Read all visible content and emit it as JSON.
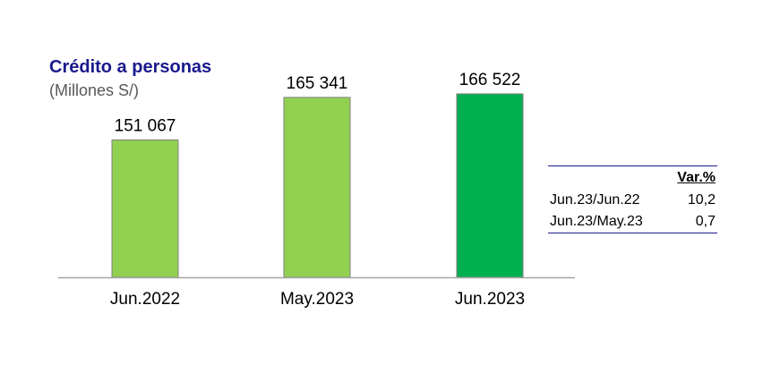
{
  "title": "Crédito a personas",
  "subtitle": "(Millones S/)",
  "chart_data": {
    "type": "bar",
    "categories": [
      "Jun.2022",
      "May.2023",
      "Jun.2023"
    ],
    "values": [
      151067,
      165341,
      166522
    ],
    "value_labels": [
      "151 067",
      "165 341",
      "166 522"
    ],
    "bar_colors": [
      "#92d050",
      "#92d050",
      "#00b050"
    ],
    "title": "Crédito a personas",
    "subtitle": "(Millones S/)",
    "ylim": [
      105000,
      168000
    ],
    "grid": false,
    "legend": "none"
  },
  "variation_table": {
    "header": "Var.%",
    "rows": [
      {
        "label": "Jun.23/Jun.22",
        "value": "10,2"
      },
      {
        "label": "Jun.23/May.23",
        "value": "0,7"
      }
    ]
  }
}
